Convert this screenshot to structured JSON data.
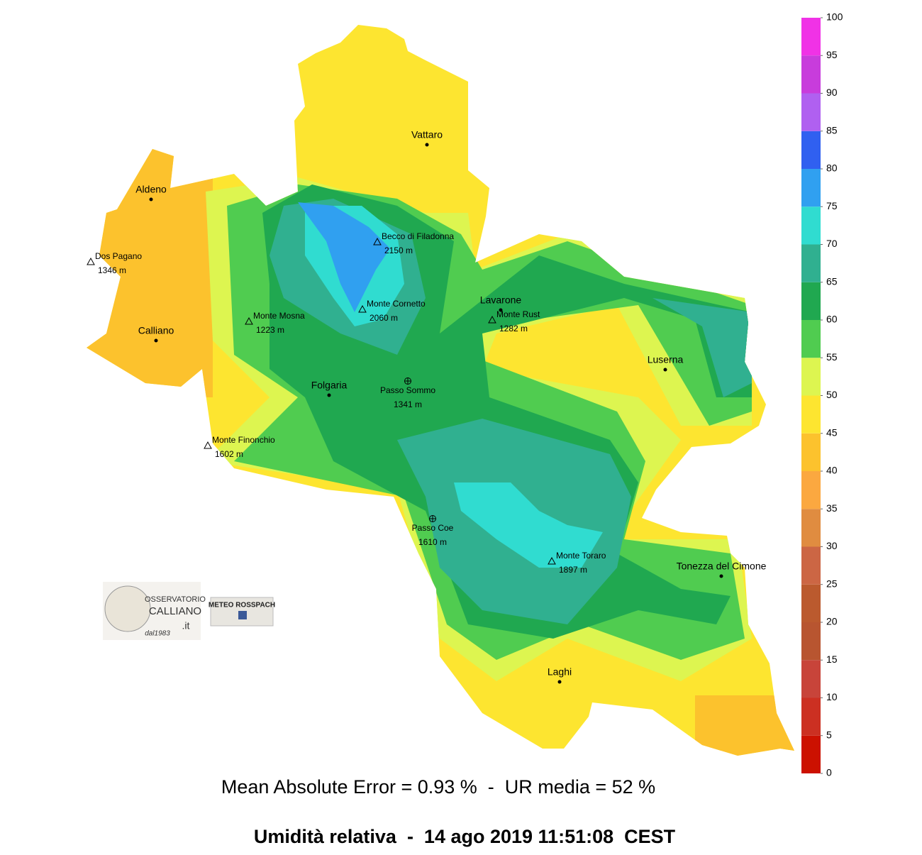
{
  "map": {
    "places": [
      {
        "name": "Vattaro",
        "marker": "dot"
      },
      {
        "name": "Aldeno",
        "marker": "dot"
      },
      {
        "name": "Dos Pagano",
        "elevation": "1346 m",
        "marker": "peak"
      },
      {
        "name": "Becco di Filadonna",
        "elevation": "2150 m",
        "marker": "peak"
      },
      {
        "name": "Monte Mosna",
        "elevation": "1223 m",
        "marker": "peak"
      },
      {
        "name": "Monte Cornetto",
        "elevation": "2060 m",
        "marker": "peak"
      },
      {
        "name": "Calliano",
        "marker": "dot"
      },
      {
        "name": "Lavarone",
        "marker": "dot"
      },
      {
        "name": "Monte Rust",
        "elevation": "1282 m",
        "marker": "peak"
      },
      {
        "name": "Luserna",
        "marker": "dot"
      },
      {
        "name": "Folgaria",
        "marker": "dot"
      },
      {
        "name": "Passo Sommo",
        "elevation": "1341 m",
        "marker": "pass"
      },
      {
        "name": "Monte Finonchio",
        "elevation": "1602 m",
        "marker": "peak"
      },
      {
        "name": "Passo Coe",
        "elevation": "1610 m",
        "marker": "pass"
      },
      {
        "name": "Monte Toraro",
        "elevation": "1897 m",
        "marker": "peak"
      },
      {
        "name": "Tonezza del Cimone",
        "marker": "dot"
      },
      {
        "name": "Laghi",
        "marker": "dot"
      }
    ]
  },
  "colorbar": {
    "ticks": [
      0,
      5,
      10,
      15,
      20,
      25,
      30,
      35,
      40,
      45,
      50,
      55,
      60,
      65,
      70,
      75,
      80,
      85,
      90,
      95,
      100
    ],
    "colors": [
      "#cc1100",
      "#cc3022",
      "#c8443a",
      "#b85530",
      "#bb5a2e",
      "#cc6644",
      "#e08c40",
      "#fba840",
      "#fcc22d",
      "#fde530",
      "#ddf550",
      "#50cc50",
      "#20a850",
      "#30b090",
      "#30dcd0",
      "#30a0f0",
      "#3060f0",
      "#b060f0",
      "#c83cdc",
      "#f032e6",
      "#ff1493"
    ]
  },
  "logos": {
    "observatory": [
      "OSSERVATORIO",
      "CALLIANO",
      ".it",
      "dal1983"
    ],
    "meteo": "METEO ROSSPACH"
  },
  "footer": {
    "stats": "Mean Absolute Error = 0.93 %  -  UR media = 52 %",
    "title": "Umidità relativa  -  14 ago 2019 11:51:08  CEST"
  }
}
